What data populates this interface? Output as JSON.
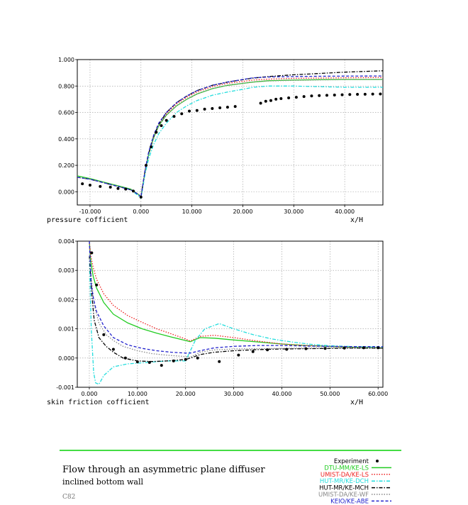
{
  "chart_data": [
    {
      "type": "line",
      "xlabel": "x/H",
      "ylabel": "pressure cofficient",
      "xlim": [
        -12.5,
        47.5
      ],
      "ylim": [
        -0.1,
        1.0
      ],
      "x_ticks": [
        -10,
        0,
        10,
        20,
        30,
        40
      ],
      "x_tick_labels": [
        "-10.000",
        "0.000",
        "10.000",
        "20.000",
        "30.000",
        "40.000"
      ],
      "y_ticks": [
        0,
        0.2,
        0.4,
        0.6,
        0.8,
        1.0
      ],
      "y_tick_labels": [
        "0.000",
        "0.200",
        "0.400",
        "0.600",
        "0.800",
        "1.000"
      ],
      "grid": true,
      "series": [
        {
          "name": "Experiment",
          "style": "dots",
          "color": "#000000",
          "x": [
            -11.5,
            -10,
            -8,
            -6,
            -4.5,
            -3,
            -1.5,
            0,
            1,
            2,
            3,
            4,
            5,
            6.5,
            8,
            9.5,
            11,
            12.5,
            14,
            15.5,
            17,
            18.5,
            23.5,
            24.5,
            25.5,
            26.5,
            27.5,
            29,
            30.5,
            32,
            33.5,
            35,
            36.5,
            38,
            39.5,
            41,
            42.5,
            44,
            45.5,
            47
          ],
          "y": [
            0.06,
            0.05,
            0.04,
            0.035,
            0.025,
            0.02,
            0.005,
            -0.04,
            0.2,
            0.34,
            0.45,
            0.5,
            0.54,
            0.57,
            0.59,
            0.61,
            0.615,
            0.625,
            0.63,
            0.635,
            0.64,
            0.645,
            0.67,
            0.685,
            0.69,
            0.7,
            0.705,
            0.71,
            0.715,
            0.72,
            0.725,
            0.728,
            0.73,
            0.732,
            0.734,
            0.736,
            0.737,
            0.738,
            0.739,
            0.74
          ]
        },
        {
          "name": "DTU-MM/KE-LS",
          "style": "solid",
          "color": "#22cc22",
          "x": [
            -12.5,
            -10,
            -8,
            -6,
            -4,
            -2,
            -0.5,
            0,
            0.8,
            1.5,
            2.5,
            3.5,
            5,
            7,
            9,
            11,
            14,
            17,
            20,
            22,
            25,
            30,
            35,
            40,
            47.5
          ],
          "y": [
            0.12,
            0.1,
            0.08,
            0.06,
            0.04,
            0.02,
            -0.02,
            -0.04,
            0.15,
            0.28,
            0.41,
            0.5,
            0.58,
            0.65,
            0.7,
            0.74,
            0.78,
            0.805,
            0.82,
            0.83,
            0.84,
            0.845,
            0.848,
            0.85,
            0.85
          ]
        },
        {
          "name": "UMIST-DA/KE-LS",
          "style": "dotted",
          "color": "#ee2222",
          "x": [
            -12.5,
            -10,
            -8,
            -6,
            -4,
            -2,
            -0.5,
            0,
            0.8,
            1.5,
            2.5,
            3.5,
            5,
            7,
            9,
            11,
            14,
            17,
            20,
            22,
            25,
            30,
            35,
            40,
            47.5
          ],
          "y": [
            0.11,
            0.095,
            0.075,
            0.055,
            0.035,
            0.015,
            -0.02,
            -0.035,
            0.16,
            0.29,
            0.42,
            0.51,
            0.59,
            0.665,
            0.715,
            0.755,
            0.795,
            0.82,
            0.835,
            0.845,
            0.852,
            0.858,
            0.86,
            0.862,
            0.865
          ]
        },
        {
          "name": "HUT-MR/KE-DCH",
          "style": "dashdot",
          "color": "#22dddd",
          "x": [
            -12.5,
            -10,
            -8,
            -6,
            -4,
            -2,
            -0.5,
            0,
            0.8,
            1.5,
            2.5,
            3.5,
            5,
            7,
            9,
            11,
            14,
            17,
            20,
            22,
            25,
            30,
            35,
            40,
            47.5
          ],
          "y": [
            0.11,
            0.095,
            0.075,
            0.055,
            0.035,
            0.015,
            -0.03,
            -0.05,
            0.13,
            0.25,
            0.36,
            0.44,
            0.52,
            0.6,
            0.65,
            0.69,
            0.73,
            0.755,
            0.775,
            0.79,
            0.8,
            0.8,
            0.795,
            0.79,
            0.79
          ]
        },
        {
          "name": "HUT-MR/KE-MCH",
          "style": "dashdot",
          "color": "#000000",
          "x": [
            -12.5,
            -10,
            -8,
            -6,
            -4,
            -2,
            -0.5,
            0,
            0.8,
            1.5,
            2.5,
            3.5,
            5,
            7,
            9,
            11,
            14,
            17,
            20,
            22,
            25,
            30,
            35,
            40,
            47.5
          ],
          "y": [
            0.11,
            0.095,
            0.075,
            0.055,
            0.035,
            0.015,
            -0.02,
            -0.035,
            0.16,
            0.29,
            0.42,
            0.51,
            0.6,
            0.675,
            0.725,
            0.765,
            0.805,
            0.83,
            0.848,
            0.86,
            0.872,
            0.885,
            0.895,
            0.905,
            0.915
          ]
        },
        {
          "name": "UMIST-DA/KE-WF",
          "style": "dotted",
          "color": "#888888",
          "x": [
            -12.5,
            -10,
            -8,
            -6,
            -4,
            -2,
            -0.5,
            0,
            0.8,
            1.5,
            2.5,
            3.5,
            5,
            7,
            9,
            11,
            14,
            17,
            20,
            22,
            25,
            30,
            35,
            40,
            47.5
          ],
          "y": [
            0.11,
            0.095,
            0.075,
            0.055,
            0.035,
            0.015,
            -0.02,
            -0.035,
            0.15,
            0.28,
            0.41,
            0.5,
            0.58,
            0.65,
            0.7,
            0.74,
            0.78,
            0.805,
            0.82,
            0.83,
            0.838,
            0.843,
            0.846,
            0.848,
            0.85
          ]
        },
        {
          "name": "KEIO/KE-ABE",
          "style": "dashed",
          "color": "#2222cc",
          "x": [
            -12.5,
            -10,
            -8,
            -6,
            -4,
            -2,
            -0.5,
            0,
            0.8,
            1.5,
            2.5,
            3.5,
            5,
            7,
            9,
            11,
            14,
            17,
            20,
            22,
            25,
            30,
            35,
            40,
            47.5
          ],
          "y": [
            0.11,
            0.095,
            0.075,
            0.055,
            0.035,
            0.015,
            -0.02,
            -0.04,
            0.16,
            0.3,
            0.43,
            0.52,
            0.6,
            0.675,
            0.725,
            0.765,
            0.805,
            0.83,
            0.85,
            0.862,
            0.868,
            0.872,
            0.874,
            0.875,
            0.876
          ]
        }
      ]
    },
    {
      "type": "line",
      "xlabel": "x/H",
      "ylabel": "skin friction cofficient",
      "xlim": [
        -2.5,
        61
      ],
      "ylim": [
        -0.001,
        0.004
      ],
      "x_ticks": [
        0,
        10,
        20,
        30,
        40,
        50,
        60
      ],
      "x_tick_labels": [
        "0.000",
        "10.000",
        "20.000",
        "30.000",
        "40.000",
        "50.000",
        "60.000"
      ],
      "y_ticks": [
        -0.001,
        0,
        0.001,
        0.002,
        0.003,
        0.004
      ],
      "y_tick_labels": [
        "-0.001",
        "0.000",
        "0.001",
        "0.002",
        "0.003",
        "0.004"
      ],
      "grid": true,
      "series": [
        {
          "name": "Experiment",
          "style": "dots",
          "color": "#000000",
          "x": [
            0.5,
            1.5,
            3,
            5,
            7.5,
            10,
            12.5,
            15,
            17.5,
            20,
            22.5,
            27,
            31,
            34,
            37,
            41,
            45,
            49,
            53,
            57,
            60
          ],
          "y": [
            0.0036,
            0.0025,
            0.0008,
            0.0003,
            0.0,
            -0.00013,
            -0.00015,
            -0.00025,
            -0.0001,
            -5e-05,
            0.0,
            -0.00012,
            0.0001,
            0.00022,
            0.00028,
            0.0003,
            0.00032,
            0.00033,
            0.00034,
            0.00035,
            0.00035
          ]
        },
        {
          "name": "DTU-MM/KE-LS",
          "style": "solid",
          "color": "#22cc22",
          "x": [
            0,
            0.3,
            0.8,
            1.5,
            3,
            5,
            8,
            11,
            14,
            17,
            20,
            21,
            23,
            26,
            30,
            35,
            40,
            45,
            50,
            55,
            61
          ],
          "y": [
            0.004,
            0.0033,
            0.0028,
            0.0024,
            0.0019,
            0.0015,
            0.0012,
            0.001,
            0.00085,
            0.00072,
            0.0006,
            0.00056,
            0.0007,
            0.00068,
            0.00062,
            0.00055,
            0.00048,
            0.00043,
            0.0004,
            0.00037,
            0.00035
          ]
        },
        {
          "name": "UMIST-DA/KE-LS",
          "style": "dotted",
          "color": "#ee2222",
          "x": [
            0,
            0.3,
            0.8,
            1.5,
            3,
            5,
            8,
            11,
            14,
            17,
            20,
            21,
            23,
            26,
            30,
            35,
            40,
            45,
            50,
            55,
            61
          ],
          "y": [
            0.004,
            0.0035,
            0.0031,
            0.0027,
            0.0022,
            0.0018,
            0.00145,
            0.00122,
            0.001,
            0.00083,
            0.00065,
            0.00058,
            0.00074,
            0.00078,
            0.0007,
            0.00058,
            0.00048,
            0.00043,
            0.0004,
            0.00037,
            0.00036
          ]
        },
        {
          "name": "HUT-MR/KE-DCH",
          "style": "dashdot",
          "color": "#22dddd",
          "x": [
            0,
            0.4,
            0.9,
            1.3,
            2,
            3,
            5,
            8,
            12,
            16,
            20,
            22,
            24,
            27,
            30,
            34,
            38,
            42,
            46,
            50,
            55,
            61
          ],
          "y": [
            0.0035,
            0.001,
            -0.0005,
            -0.00085,
            -0.0009,
            -0.0006,
            -0.0003,
            -0.0002,
            -0.00015,
            -0.0001,
            -0.0001,
            0.0006,
            0.001,
            0.00118,
            0.001,
            0.0008,
            0.00065,
            0.00055,
            0.00047,
            0.00042,
            0.00039,
            0.00037
          ]
        },
        {
          "name": "HUT-MR/KE-MCH",
          "style": "dashdot",
          "color": "#000000",
          "x": [
            0,
            0.5,
            1,
            2,
            3.5,
            5,
            7,
            10,
            13,
            16,
            20,
            21,
            23,
            26,
            30,
            35,
            40,
            45,
            50,
            55,
            61
          ],
          "y": [
            0.0035,
            0.0022,
            0.0013,
            0.0007,
            0.0004,
            0.0002,
            0.0,
            -0.0001,
            -0.00012,
            -0.0001,
            -5e-05,
            0.0,
            0.00012,
            0.0002,
            0.00025,
            0.00029,
            0.00031,
            0.00032,
            0.00033,
            0.00034,
            0.00034
          ]
        },
        {
          "name": "UMIST-DA/KE-WF",
          "style": "dotted",
          "color": "#888888",
          "x": [
            0,
            0.5,
            1,
            2,
            3.5,
            5,
            7,
            10,
            13,
            16,
            20,
            21,
            23,
            26,
            30,
            35,
            40,
            45,
            50,
            55,
            61
          ],
          "y": [
            0.0035,
            0.0026,
            0.0018,
            0.0012,
            0.0008,
            0.0006,
            0.0004,
            0.00025,
            0.00015,
            0.0001,
            5e-05,
            3e-05,
            0.0002,
            0.00028,
            0.00031,
            0.00032,
            0.00033,
            0.00034,
            0.00035,
            0.00035,
            0.00035
          ]
        },
        {
          "name": "KEIO/KE-ABE",
          "style": "dashed",
          "color": "#2222cc",
          "x": [
            0,
            0.4,
            0.9,
            1.5,
            3,
            5,
            8,
            11,
            14,
            17,
            20,
            21,
            23,
            26,
            30,
            35,
            40,
            45,
            50,
            55,
            61
          ],
          "y": [
            0.004,
            0.0025,
            0.002,
            0.0016,
            0.0011,
            0.0007,
            0.00045,
            0.00033,
            0.00025,
            0.0002,
            0.00017,
            0.00017,
            0.00025,
            0.00035,
            0.0004,
            0.00043,
            0.00043,
            0.00041,
            0.0004,
            0.00039,
            0.00039
          ]
        }
      ]
    }
  ],
  "caption": {
    "title": "Flow through an asymmetric plane diffuser",
    "subtitle": "inclined bottom wall",
    "code": "C82"
  },
  "legend": {
    "placement": "bottom-right",
    "entries": [
      {
        "label": "Experiment",
        "color": "#000000",
        "style": "dots"
      },
      {
        "label": "DTU-MM/KE-LS",
        "color": "#22cc22",
        "style": "solid"
      },
      {
        "label": "UMIST-DA/KE-LS",
        "color": "#ee2222",
        "style": "dotted"
      },
      {
        "label": "HUT-MR/KE-DCH",
        "color": "#22dddd",
        "style": "dashdot"
      },
      {
        "label": "HUT-MR/KE-MCH",
        "color": "#000000",
        "style": "dashdot"
      },
      {
        "label": "UMIST-DA/KE-WF",
        "color": "#888888",
        "style": "dotted"
      },
      {
        "label": "KEIO/KE-ABE",
        "color": "#2222cc",
        "style": "dashed"
      }
    ]
  },
  "divider_color": "#44dd44"
}
